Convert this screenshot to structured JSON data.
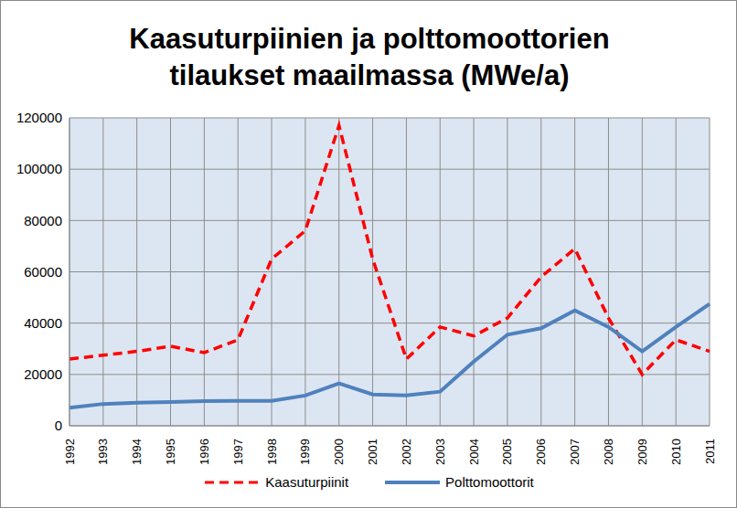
{
  "chart_data": {
    "type": "line",
    "title": "Kaasuturpiinien ja polttomoottorien tilaukset maailmassa (MWe/a)",
    "categories": [
      "1992",
      "1993",
      "1994",
      "1995",
      "1996",
      "1997",
      "1998",
      "1999",
      "2000",
      "2001",
      "2002",
      "2003",
      "2004",
      "2005",
      "2006",
      "2007",
      "2008",
      "2009",
      "2010",
      "2011"
    ],
    "series": [
      {
        "name": "Kaasuturpiinit",
        "color": "#ff0000",
        "line_style": "dashed",
        "values": [
          26000,
          27500,
          29000,
          31000,
          28500,
          33500,
          65000,
          76000,
          117000,
          65000,
          26000,
          38500,
          35000,
          42000,
          58000,
          69000,
          42000,
          20000,
          33500,
          29000
        ]
      },
      {
        "name": "Polttomoottorit",
        "color": "#4f81bd",
        "line_style": "solid",
        "values": [
          7000,
          8500,
          9000,
          9300,
          9600,
          9700,
          9700,
          11800,
          16500,
          12200,
          11800,
          13300,
          25000,
          35500,
          38000,
          45000,
          38500,
          29000,
          38500,
          47500
        ]
      }
    ],
    "ylim": [
      0,
      120000
    ],
    "yticks": [
      0,
      20000,
      40000,
      60000,
      80000,
      100000,
      120000
    ],
    "grid": true,
    "legend": "bottom"
  }
}
